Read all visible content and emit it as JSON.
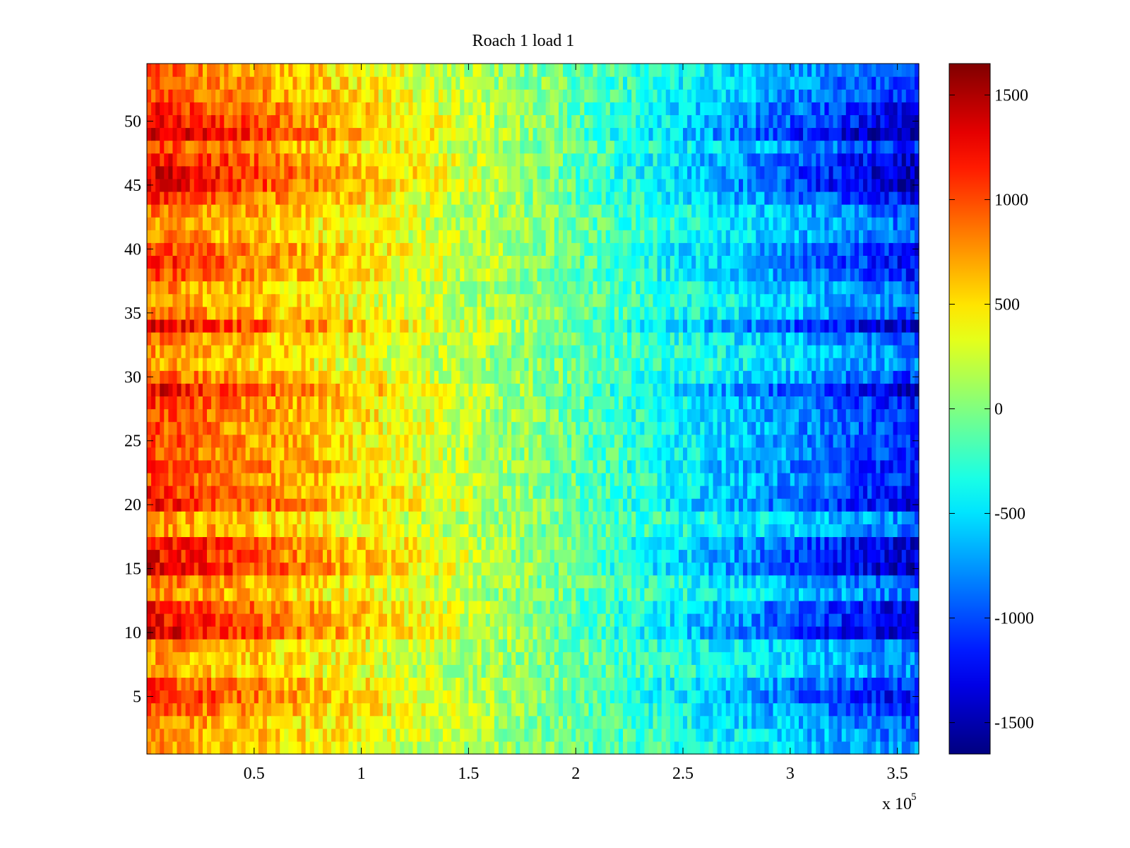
{
  "chart_data": {
    "type": "heatmap",
    "title": "Roach 1 load 1",
    "xlabel": "",
    "ylabel": "",
    "x_multiplier_label": "x 10",
    "x_multiplier_exponent": "5",
    "xlim": [
      0,
      3.6
    ],
    "ylim": [
      0.5,
      54.5
    ],
    "x_ticks": [
      0.5,
      1,
      1.5,
      2,
      2.5,
      3,
      3.5
    ],
    "x_tick_labels": [
      "0.5",
      "1",
      "1.5",
      "2",
      "2.5",
      "3",
      "3.5"
    ],
    "y_ticks": [
      5,
      10,
      15,
      20,
      25,
      30,
      35,
      40,
      45,
      50
    ],
    "y_tick_labels": [
      "5",
      "10",
      "15",
      "20",
      "25",
      "30",
      "35",
      "40",
      "45",
      "50"
    ],
    "rows": 54,
    "colormap": "jet",
    "clim": [
      -1650,
      1650
    ],
    "colorbar_ticks": [
      1500,
      1000,
      500,
      0,
      -500,
      -1000,
      -1500
    ],
    "colorbar_tick_labels": [
      "1500",
      "1000",
      "500",
      "0",
      "-500",
      "-1000",
      "-1500"
    ],
    "trend": {
      "x_at_zero": 1.85,
      "value_at_x0": 950,
      "value_at_xmax": -1050
    },
    "row_amplitude": {
      "1": 0.78,
      "2": 0.85,
      "3": 0.9,
      "4": 1.05,
      "5": 1.25,
      "6": 1.1,
      "7": 0.75,
      "8": 0.8,
      "9": 0.85,
      "10": 1.45,
      "11": 1.35,
      "12": 1.3,
      "13": 0.85,
      "14": 0.95,
      "15": 1.45,
      "16": 1.35,
      "17": 1.35,
      "18": 0.85,
      "19": 0.8,
      "20": 1.3,
      "21": 1.2,
      "22": 1.1,
      "23": 1.2,
      "24": 1.05,
      "25": 1.1,
      "26": 1.05,
      "27": 1.1,
      "28": 1.15,
      "29": 1.4,
      "30": 1.0,
      "31": 0.75,
      "32": 0.8,
      "33": 0.9,
      "34": 1.4,
      "35": 0.9,
      "36": 0.8,
      "37": 0.85,
      "38": 1.1,
      "39": 1.2,
      "40": 1.15,
      "41": 0.9,
      "42": 0.85,
      "43": 0.95,
      "44": 1.2,
      "45": 1.45,
      "46": 1.45,
      "47": 1.35,
      "48": 1.1,
      "49": 1.55,
      "50": 1.35,
      "51": 1.25,
      "52": 1.1,
      "53": 1.05,
      "54": 1.0
    },
    "noise": 260,
    "grid": false,
    "legend": "none"
  }
}
